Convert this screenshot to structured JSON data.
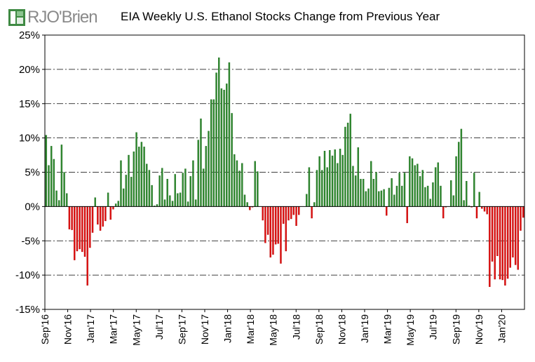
{
  "logo": {
    "text": "RJO'Brien",
    "colors": {
      "green": "#3f8a43",
      "gray": "#8a8a8a",
      "light_green": "#8bc48f"
    }
  },
  "chart_data": {
    "type": "bar",
    "title": "EIA Weekly U.S. Ethanol Stocks Change from Previous Year",
    "xlabel": "",
    "ylabel": "",
    "ylim": [
      -15,
      25
    ],
    "y_unit": "%",
    "y_ticks": [
      "25%",
      "20%",
      "15%",
      "10%",
      "5%",
      "0%",
      "-5%",
      "-10%",
      "-15%"
    ],
    "x_tick_labels": [
      "Sep'16",
      "Nov'16",
      "Jan'17",
      "Mar'17",
      "May'17",
      "Jul'17",
      "Sep'17",
      "Nov'17",
      "Jan'18",
      "Mar'18",
      "May'18",
      "Jul'18",
      "Sep'18",
      "Nov'18",
      "Jan'19",
      "Mar'19",
      "May'19",
      "Jul'19",
      "Sep'19",
      "Nov'19",
      "Jan'20"
    ],
    "grid": "horizontal dash-dot",
    "colors": {
      "positive": "#2f8a2f",
      "negative": "#e01010",
      "positive_edge": "#1f6a1f",
      "negative_edge": "#b00000"
    },
    "frequency": "weekly",
    "values": [
      10.4,
      6.0,
      8.8,
      6.9,
      2.3,
      0.9,
      9.0,
      5.0,
      1.9,
      -3.3,
      -3.4,
      -7.8,
      -6.5,
      -6.2,
      -6.6,
      -7.3,
      -11.5,
      -6.0,
      -3.8,
      1.3,
      -2.6,
      -3.5,
      -2.9,
      -2.1,
      2.0,
      -1.9,
      -0.4,
      0.4,
      0.8,
      6.7,
      2.6,
      4.6,
      7.5,
      4.3,
      8.0,
      10.8,
      8.7,
      9.4,
      8.7,
      6.2,
      5.3,
      3.1,
      0.1,
      0.3,
      4.5,
      5.6,
      1.0,
      4.0,
      1.6,
      0.8,
      4.7,
      1.9,
      2.0,
      4.9,
      5.5,
      0.7,
      4.4,
      6.7,
      1.0,
      9.7,
      12.8,
      5.5,
      8.8,
      11.0,
      15.6,
      15.6,
      19.5,
      21.7,
      17.2,
      17.0,
      17.9,
      21.0,
      13.6,
      7.6,
      6.7,
      5.2,
      6.3,
      1.7,
      0.6,
      -0.5,
      -0.1,
      6.6,
      5.1,
      0.0,
      -2.0,
      -5.3,
      -4.1,
      -7.4,
      -7.0,
      -5.5,
      -5.4,
      -8.3,
      -2.5,
      -6.5,
      -2.0,
      -1.8,
      -1.2,
      -2.8,
      -1.2,
      0.0,
      0.0,
      1.8,
      5.7,
      -1.7,
      0.6,
      5.3,
      7.3,
      5.3,
      8.1,
      5.7,
      8.2,
      7.4,
      8.3,
      6.3,
      8.4,
      7.5,
      11.6,
      12.2,
      13.5,
      5.9,
      4.5,
      8.6,
      4.0,
      4.0,
      2.2,
      2.6,
      6.6,
      4.0,
      5.0,
      2.2,
      2.3,
      2.5,
      -1.3,
      2.7,
      4.1,
      1.7,
      3.0,
      4.9,
      3.0,
      4.9,
      -2.4,
      7.3,
      7.0,
      6.0,
      6.2,
      4.4,
      5.3,
      2.8,
      3.0,
      1.1,
      3.5,
      5.7,
      6.4,
      3.0,
      -1.7,
      -0.1,
      0.0,
      3.8,
      1.6,
      7.3,
      9.4,
      11.3,
      0.9,
      3.7,
      0.1,
      -0.1,
      4.9,
      -1.7,
      2.1,
      -0.3,
      -0.7,
      -1.1,
      -11.7,
      -8.0,
      -10.6,
      -7.2,
      -10.6,
      -10.7,
      -11.5,
      -10.5,
      -8.9,
      -7.4,
      -8.5,
      -9.2,
      -3.5,
      -1.6
    ]
  }
}
